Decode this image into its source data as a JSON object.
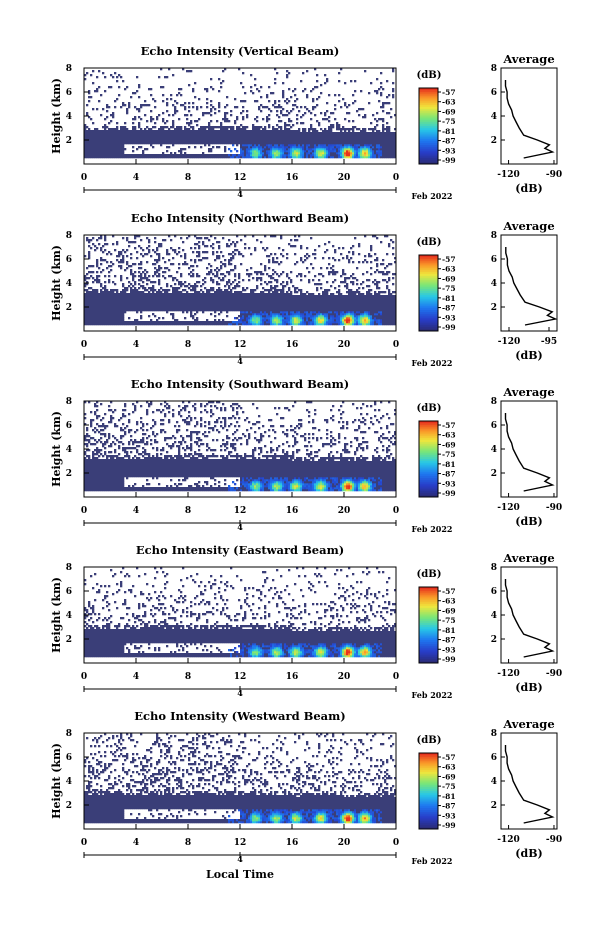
{
  "figure": {
    "bottom_xlabel": "Local Time",
    "date_label": "Feb 2022",
    "day_marker": "4",
    "ylabel": "Height (km)",
    "colorbar_unit": "(dB)",
    "avg_title": "Average",
    "avg_xlabel": "(dB)"
  },
  "colors": {
    "background_fill": "#3a3e78",
    "gap": "#ffffff"
  },
  "chart_data": [
    {
      "type": "heatmap",
      "title": "Echo Intensity (Vertical Beam)",
      "xlabel": "",
      "ylabel": "Height (km)",
      "x_ticks": [
        "0",
        "4",
        "8",
        "12",
        "16",
        "20",
        "0"
      ],
      "y_ticks": [
        "2",
        "4",
        "6",
        "8"
      ],
      "xlim": [
        0,
        24
      ],
      "ylim": [
        0,
        8
      ],
      "colorbar": {
        "label": "(dB)",
        "ticks": [
          "-57",
          "-63",
          "-69",
          "-75",
          "-81",
          "-87",
          "-93",
          "-99"
        ]
      },
      "average_profile": {
        "title": "Average",
        "xlabel": "(dB)",
        "x_ticks": [
          "-120",
          "-90"
        ],
        "y_ticks": [
          "2",
          "4",
          "6",
          "8"
        ],
        "xlim": [
          -125,
          -88
        ],
        "ylim": [
          0,
          8
        ],
        "height_km": [
          0.5,
          1.0,
          1.3,
          1.6,
          2.0,
          2.4,
          3.0,
          3.5,
          4.0,
          4.5,
          5.0,
          5.5,
          6.0,
          6.5,
          7.0
        ],
        "value_db": [
          -110,
          -91,
          -96,
          -93,
          -101,
          -110,
          -113,
          -115,
          -117,
          -118,
          -120,
          -121,
          -121,
          -122,
          -122
        ]
      }
    },
    {
      "type": "heatmap",
      "title": "Echo Intensity (Northward Beam)",
      "xlabel": "",
      "ylabel": "Height (km)",
      "x_ticks": [
        "0",
        "4",
        "8",
        "12",
        "16",
        "20",
        "0"
      ],
      "y_ticks": [
        "2",
        "4",
        "6",
        "8"
      ],
      "xlim": [
        0,
        24
      ],
      "ylim": [
        0,
        8
      ],
      "colorbar": {
        "label": "(dB)",
        "ticks": [
          "-57",
          "-63",
          "-69",
          "-75",
          "-81",
          "-87",
          "-93",
          "-99"
        ]
      },
      "average_profile": {
        "title": "Average",
        "xlabel": "(dB)",
        "x_ticks": [
          "-120",
          "-95"
        ],
        "y_ticks": [
          "2",
          "4",
          "6",
          "8"
        ],
        "xlim": [
          -125,
          -90
        ],
        "ylim": [
          0,
          8
        ],
        "height_km": [
          0.5,
          1.0,
          1.3,
          1.6,
          2.0,
          2.4,
          3.0,
          3.5,
          4.0,
          4.5,
          5.0,
          5.5,
          6.0,
          6.5,
          7.0
        ],
        "value_db": [
          -110,
          -91,
          -96,
          -93,
          -101,
          -110,
          -113,
          -115,
          -117,
          -118,
          -120,
          -121,
          -121,
          -122,
          -122
        ]
      }
    },
    {
      "type": "heatmap",
      "title": "Echo Intensity (Southward Beam)",
      "xlabel": "",
      "ylabel": "Height (km)",
      "x_ticks": [
        "0",
        "4",
        "8",
        "12",
        "16",
        "20",
        "0"
      ],
      "y_ticks": [
        "2",
        "4",
        "6",
        "8"
      ],
      "xlim": [
        0,
        24
      ],
      "ylim": [
        0,
        8
      ],
      "colorbar": {
        "label": "(dB)",
        "ticks": [
          "-57",
          "-63",
          "-69",
          "-75",
          "-81",
          "-87",
          "-93",
          "-99"
        ]
      },
      "average_profile": {
        "title": "Average",
        "xlabel": "(dB)",
        "x_ticks": [
          "-120",
          "-90"
        ],
        "y_ticks": [
          "2",
          "4",
          "6",
          "8"
        ],
        "xlim": [
          -125,
          -88
        ],
        "ylim": [
          0,
          8
        ],
        "height_km": [
          0.5,
          1.0,
          1.3,
          1.6,
          2.0,
          2.4,
          3.0,
          3.5,
          4.0,
          4.5,
          5.0,
          5.5,
          6.0,
          6.5,
          7.0
        ],
        "value_db": [
          -110,
          -91,
          -96,
          -93,
          -101,
          -110,
          -113,
          -115,
          -117,
          -118,
          -120,
          -121,
          -121,
          -122,
          -122
        ]
      }
    },
    {
      "type": "heatmap",
      "title": "Echo Intensity (Eastward Beam)",
      "xlabel": "",
      "ylabel": "Height (km)",
      "x_ticks": [
        "0",
        "4",
        "8",
        "12",
        "16",
        "20",
        "0"
      ],
      "y_ticks": [
        "2",
        "4",
        "6",
        "8"
      ],
      "xlim": [
        0,
        24
      ],
      "ylim": [
        0,
        8
      ],
      "colorbar": {
        "label": "(dB)",
        "ticks": [
          "-57",
          "-63",
          "-69",
          "-75",
          "-81",
          "-87",
          "-93",
          "-99"
        ]
      },
      "average_profile": {
        "title": "Average",
        "xlabel": "(dB)",
        "x_ticks": [
          "-120",
          "-90"
        ],
        "y_ticks": [
          "2",
          "4",
          "6",
          "8"
        ],
        "xlim": [
          -125,
          -88
        ],
        "ylim": [
          0,
          8
        ],
        "height_km": [
          0.5,
          1.0,
          1.3,
          1.6,
          2.0,
          2.4,
          3.0,
          3.5,
          4.0,
          4.5,
          5.0,
          5.5,
          6.0,
          6.5,
          7.0
        ],
        "value_db": [
          -110,
          -91,
          -96,
          -93,
          -101,
          -110,
          -113,
          -115,
          -117,
          -118,
          -120,
          -121,
          -121,
          -122,
          -122
        ]
      }
    },
    {
      "type": "heatmap",
      "title": "Echo Intensity (Westward Beam)",
      "xlabel": "Local Time",
      "ylabel": "Height (km)",
      "x_ticks": [
        "0",
        "4",
        "8",
        "12",
        "16",
        "20",
        "0"
      ],
      "y_ticks": [
        "2",
        "4",
        "6",
        "8"
      ],
      "xlim": [
        0,
        24
      ],
      "ylim": [
        0,
        8
      ],
      "colorbar": {
        "label": "(dB)",
        "ticks": [
          "-57",
          "-63",
          "-69",
          "-75",
          "-81",
          "-87",
          "-93",
          "-99"
        ]
      },
      "average_profile": {
        "title": "Average",
        "xlabel": "(dB)",
        "x_ticks": [
          "-120",
          "-90"
        ],
        "y_ticks": [
          "2",
          "4",
          "6",
          "8"
        ],
        "xlim": [
          -125,
          -88
        ],
        "ylim": [
          0,
          8
        ],
        "height_km": [
          0.5,
          1.0,
          1.3,
          1.6,
          2.0,
          2.4,
          3.0,
          3.5,
          4.0,
          4.5,
          5.0,
          5.5,
          6.0,
          6.5,
          7.0
        ],
        "value_db": [
          -110,
          -91,
          -96,
          -93,
          -101,
          -110,
          -113,
          -115,
          -117,
          -118,
          -120,
          -121,
          -121,
          -122,
          -122
        ]
      }
    }
  ]
}
